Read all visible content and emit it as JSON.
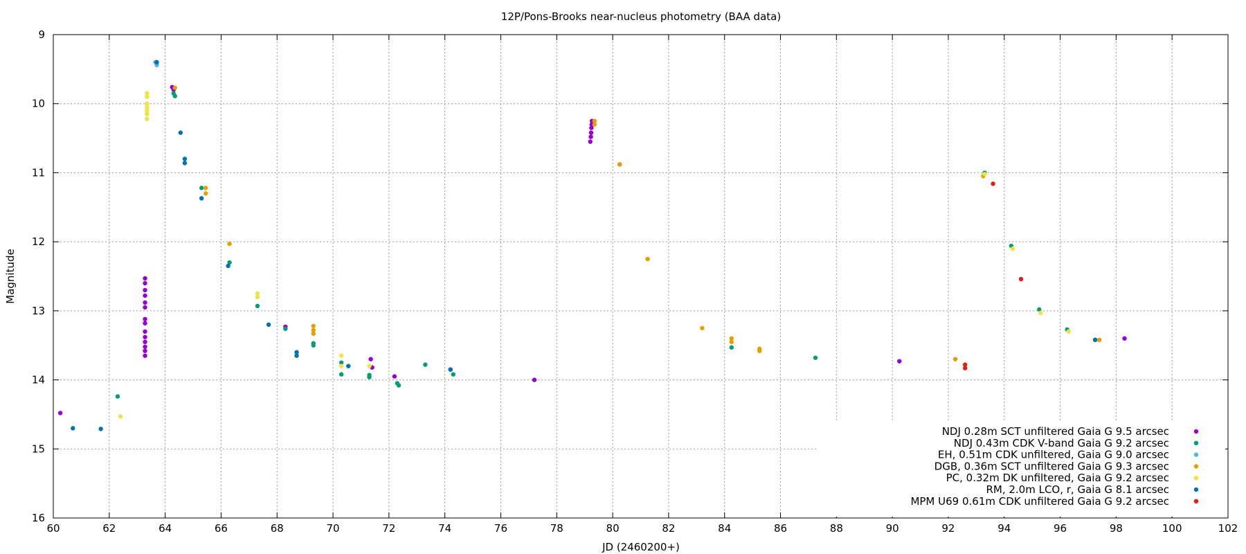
{
  "chart_data": {
    "type": "scatter",
    "title": "12P/Pons-Brooks near-nucleus photometry (BAA data)",
    "xlabel": "JD (2460200+)",
    "ylabel": "Magnitude",
    "xlim": [
      60,
      102
    ],
    "ylim": [
      9,
      16
    ],
    "y_inverted": true,
    "x_ticks": [
      60,
      62,
      64,
      66,
      68,
      70,
      72,
      74,
      76,
      78,
      80,
      82,
      84,
      86,
      88,
      90,
      92,
      94,
      96,
      98,
      100,
      102
    ],
    "y_ticks": [
      9,
      10,
      11,
      12,
      13,
      14,
      15,
      16
    ],
    "grid": true,
    "legend_position": "bottom-right",
    "series": [
      {
        "name": "NDJ 0.28m SCT unfiltered Gaia G 9.5 arcsec",
        "color": "#9400d3",
        "points": [
          [
            60.25,
            14.48
          ],
          [
            63.28,
            12.53
          ],
          [
            63.28,
            12.6
          ],
          [
            63.28,
            12.7
          ],
          [
            63.28,
            12.78
          ],
          [
            63.28,
            12.88
          ],
          [
            63.28,
            12.95
          ],
          [
            63.28,
            13.12
          ],
          [
            63.28,
            13.18
          ],
          [
            63.28,
            13.3
          ],
          [
            63.28,
            13.38
          ],
          [
            63.28,
            13.45
          ],
          [
            63.28,
            13.52
          ],
          [
            63.28,
            13.58
          ],
          [
            63.28,
            13.65
          ],
          [
            64.25,
            9.76
          ],
          [
            64.3,
            9.8
          ],
          [
            68.3,
            13.23
          ],
          [
            71.35,
            13.7
          ],
          [
            71.4,
            13.82
          ],
          [
            72.2,
            13.95
          ],
          [
            74.2,
            13.85
          ],
          [
            77.2,
            14.0
          ],
          [
            79.2,
            10.55
          ],
          [
            79.22,
            10.48
          ],
          [
            79.23,
            10.42
          ],
          [
            79.24,
            10.35
          ],
          [
            79.25,
            10.3
          ],
          [
            79.26,
            10.25
          ],
          [
            80.25,
            10.88
          ],
          [
            90.25,
            13.73
          ],
          [
            98.3,
            13.4
          ]
        ]
      },
      {
        "name": "NDJ 0.43m CDK V-band Gaia G 9.2 arcsec",
        "color": "#009e73",
        "points": [
          [
            62.3,
            14.24
          ],
          [
            64.3,
            9.85
          ],
          [
            64.35,
            9.89
          ],
          [
            65.3,
            11.22
          ],
          [
            66.3,
            12.3
          ],
          [
            67.3,
            12.93
          ],
          [
            68.3,
            13.26
          ],
          [
            69.3,
            13.5
          ],
          [
            69.3,
            13.47
          ],
          [
            70.3,
            13.75
          ],
          [
            70.3,
            13.92
          ],
          [
            71.3,
            13.96
          ],
          [
            71.3,
            13.93
          ],
          [
            72.3,
            14.05
          ],
          [
            72.35,
            14.08
          ],
          [
            73.3,
            13.78
          ],
          [
            74.3,
            13.92
          ],
          [
            84.25,
            13.53
          ],
          [
            87.25,
            13.68
          ],
          [
            93.3,
            11.0
          ],
          [
            94.25,
            12.06
          ],
          [
            95.25,
            12.98
          ],
          [
            96.25,
            13.27
          ],
          [
            97.25,
            13.42
          ]
        ]
      },
      {
        "name": "EH, 0.51m CDK unfiltered, Gaia G 9.0 arcsec",
        "color": "#56b4e9",
        "points": [
          [
            63.65,
            9.4
          ],
          [
            63.7,
            9.44
          ]
        ]
      },
      {
        "name": "DGB, 0.36m SCT unfiltered Gaia G 9.3 arcsec",
        "color": "#e69f00",
        "points": [
          [
            64.35,
            9.77
          ],
          [
            65.45,
            11.22
          ],
          [
            65.45,
            11.3
          ],
          [
            66.3,
            12.03
          ],
          [
            69.3,
            13.22
          ],
          [
            69.3,
            13.28
          ],
          [
            69.3,
            13.33
          ],
          [
            79.35,
            10.25
          ],
          [
            79.35,
            10.3
          ],
          [
            80.25,
            10.88
          ],
          [
            81.25,
            12.25
          ],
          [
            83.2,
            13.25
          ],
          [
            84.25,
            13.4
          ],
          [
            84.25,
            13.45
          ],
          [
            85.25,
            13.55
          ],
          [
            85.25,
            13.58
          ],
          [
            92.25,
            13.7
          ],
          [
            93.25,
            11.05
          ],
          [
            97.4,
            13.42
          ]
        ]
      },
      {
        "name": "PC, 0.32m DK unfiltered, Gaia G 9.2 arcsec",
        "color": "#f0e442",
        "points": [
          [
            62.4,
            14.53
          ],
          [
            63.35,
            9.85
          ],
          [
            63.35,
            9.9
          ],
          [
            63.35,
            10.0
          ],
          [
            63.35,
            10.05
          ],
          [
            63.35,
            10.1
          ],
          [
            63.35,
            10.15
          ],
          [
            63.35,
            10.22
          ],
          [
            67.3,
            12.75
          ],
          [
            67.3,
            12.8
          ],
          [
            70.3,
            13.65
          ],
          [
            70.3,
            13.8
          ],
          [
            71.3,
            13.8
          ],
          [
            93.3,
            11.02
          ],
          [
            94.3,
            12.1
          ],
          [
            95.3,
            13.03
          ],
          [
            96.3,
            13.3
          ]
        ]
      },
      {
        "name": "RM, 2.0m LCO, r, Gaia G 8.1 arcsec",
        "color": "#0072b2",
        "points": [
          [
            60.7,
            14.7
          ],
          [
            61.7,
            14.71
          ],
          [
            63.7,
            9.4
          ],
          [
            64.55,
            10.42
          ],
          [
            64.7,
            10.8
          ],
          [
            64.7,
            10.86
          ],
          [
            65.3,
            11.37
          ],
          [
            66.25,
            12.35
          ],
          [
            67.7,
            13.2
          ],
          [
            68.7,
            13.6
          ],
          [
            68.7,
            13.65
          ],
          [
            70.55,
            13.8
          ],
          [
            74.2,
            13.85
          ],
          [
            97.25,
            13.42
          ]
        ]
      },
      {
        "name": "MPM U69 0.61m CDK unfiltered Gaia G 9.2 arcsec",
        "color": "#e51e10",
        "points": [
          [
            92.6,
            13.78
          ],
          [
            92.6,
            13.83
          ],
          [
            93.6,
            11.16
          ],
          [
            94.6,
            12.54
          ]
        ]
      }
    ]
  }
}
